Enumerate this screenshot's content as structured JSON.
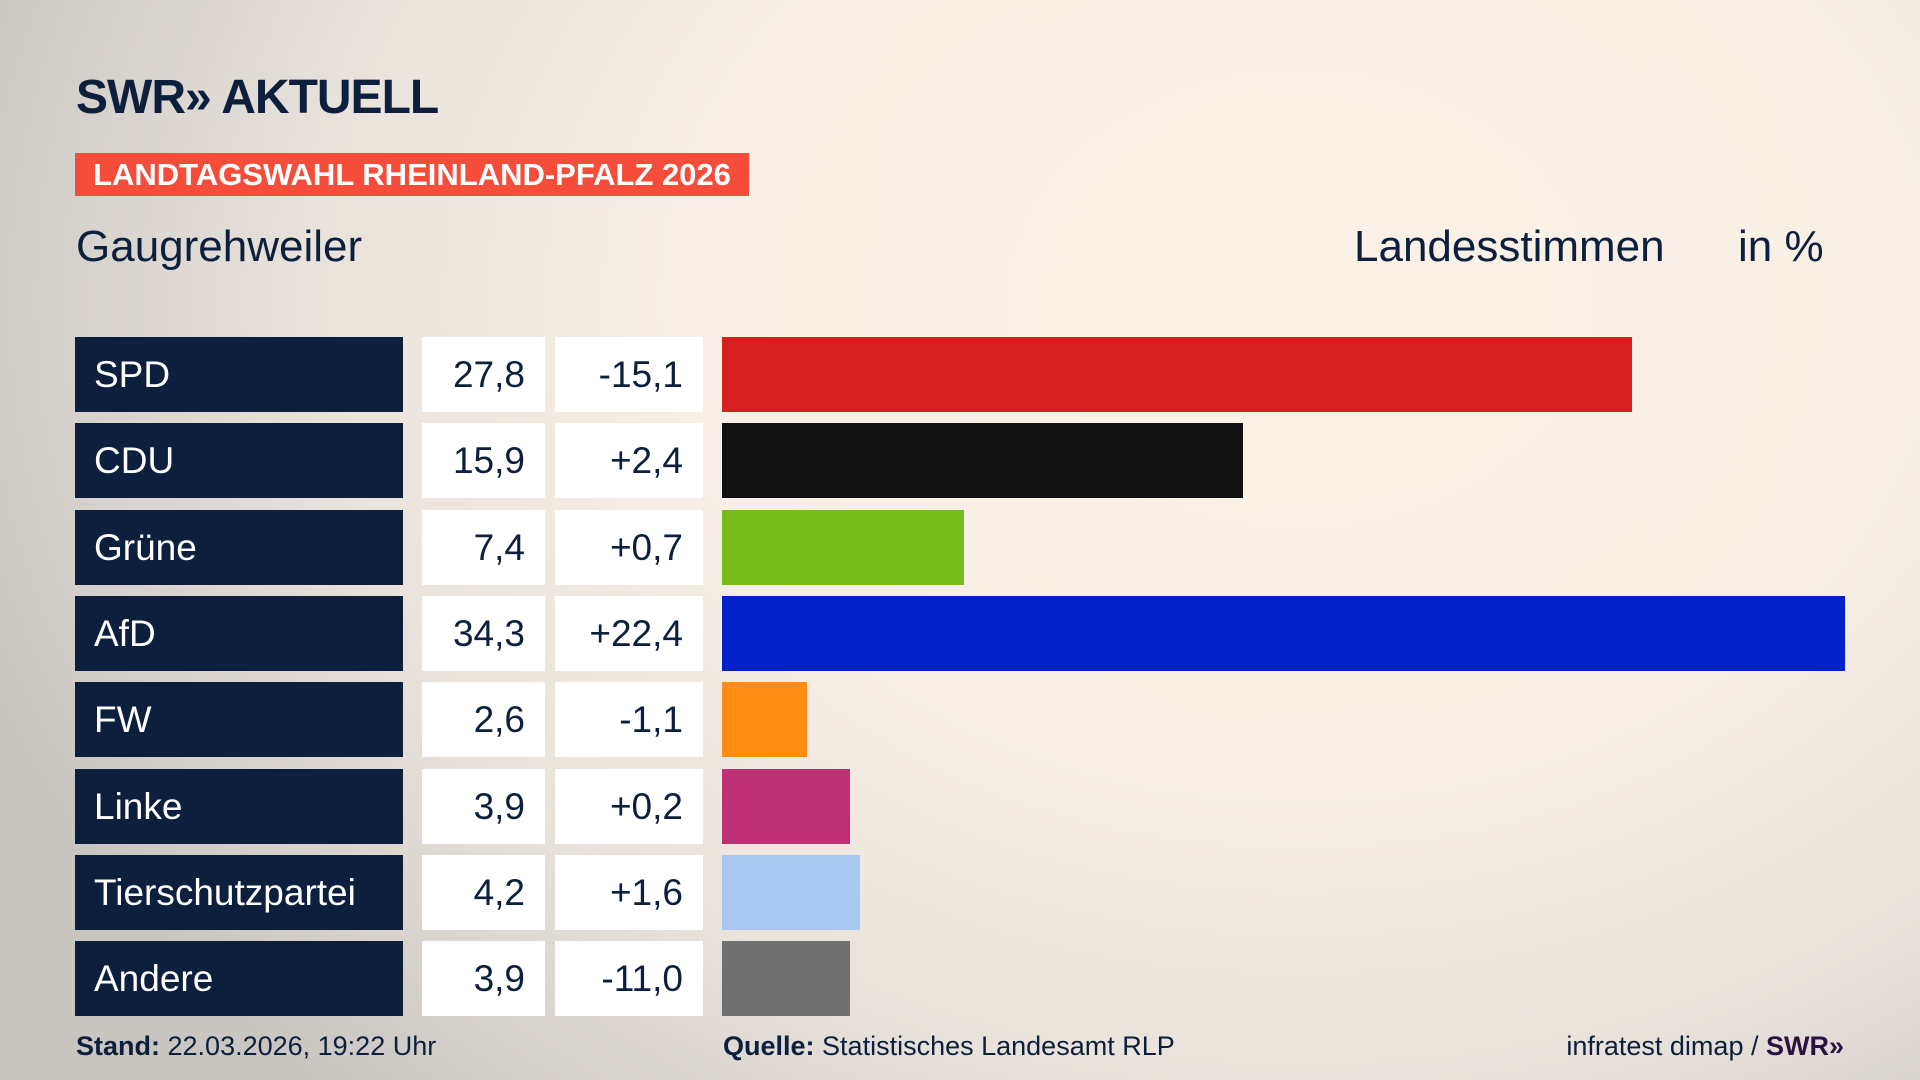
{
  "header": {
    "logo": "SWR» AKTUELL",
    "badge": "LANDTAGSWAHL RHEINLAND-PFALZ 2026",
    "region": "Gaugrehweiler",
    "vote_type": "Landesstimmen",
    "unit": "in %"
  },
  "chart_data": {
    "type": "bar",
    "orientation": "horizontal",
    "xlim": [
      0,
      34.3
    ],
    "categories": [
      "SPD",
      "CDU",
      "Grüne",
      "AfD",
      "FW",
      "Linke",
      "Tierschutzpartei",
      "Andere"
    ],
    "values": [
      27.8,
      15.9,
      7.4,
      34.3,
      2.6,
      3.9,
      4.2,
      3.9
    ],
    "value_labels": [
      "27,8",
      "15,9",
      "7,4",
      "34,3",
      "2,6",
      "3,9",
      "4,2",
      "3,9"
    ],
    "change_labels": [
      "-15,1",
      "+2,4",
      "+0,7",
      "+22,4",
      "-1,1",
      "+0,2",
      "+1,6",
      "-11,0"
    ],
    "colors": [
      "#d81f20",
      "#121212",
      "#78bc1b",
      "#0021c8",
      "#ff8c15",
      "#bd3075",
      "#a9c8ef",
      "#707070"
    ]
  },
  "footer": {
    "stand_label": "Stand:",
    "stand_value": "22.03.2026, 19:22 Uhr",
    "source_label": "Quelle:",
    "source_value": "Statistisches Landesamt RLP",
    "credit": "infratest dimap /",
    "credit_logo": "SWR»"
  }
}
